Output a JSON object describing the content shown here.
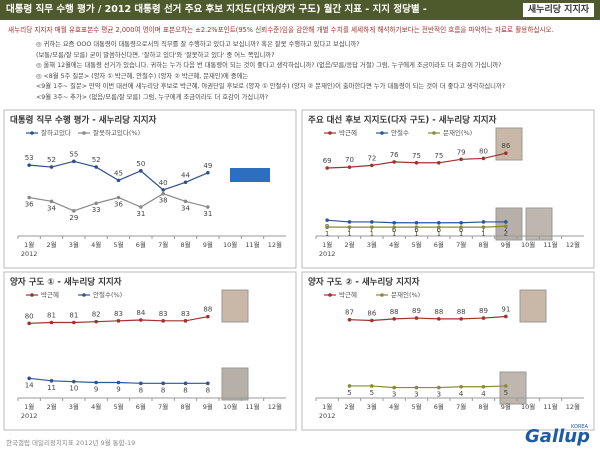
{
  "header": {
    "title": "대통령 직무 수행 평가 / 2012 대통령 선거 주요 후보 지지도(다자/양자 구도) 월간 지표 - 지지 정당별 -",
    "badge": "새누리당 지지자"
  },
  "intro": "새누리당 지지자 매월 유효표본수 평균 2,000여 명이며 표본오차는 ±2.2%포인트(95% 신뢰수준)임을 감안해 개별 수치를 세세하게 해석하기보다는 전반적인 흐름을 파악하는 자료로 활용하십시오.",
  "notes": [
    "◎ 귀하는 요즘 OOO 대통령이 대통령으로서의 직무를 잘 수행하고 있다고 보십니까? 혹은 잘못 수행하고 있다고 보십니까?",
    "(보통/모름/잘 모름) 굳이 말씀하신다면, '잘하고 있다'와 '잘못하고 있다' 중 어느 쪽입니까?",
    "◎ 올해 12월에는 대통령 선거가 있습니다. 귀하는 누가 다음 번 대통령이 되는 것이 좋다고 생각하십니까? (없음/모름/응답 거절) 그럼, 누구에게 조금이라도 더 호감이 가십니까?",
    "◎ <8월 5주 질문> (양자 ① 박근혜, 안철수) (양자 ② 박근혜, 문재인)에 중에는",
    "<9월 1주~ 질문> 만약 이번 대선에 새누리당 후보로 박근혜, 야권단일 후보로 (양자 ① 안철수) (양자 ② 문재인)이 출마한다면 누가 대통령이 되는 것이 더 좋다고 생각하십니까?",
    "<9월 3주~ 추가> (없음/모름/잘 모름) 그럼, 누구에게 조금이라도 더 호감이 가십니까?"
  ],
  "footer": "한국갤럽 데일리정치지표 2012년 9월 통합-19",
  "logo": "Gallup",
  "logo_sub": "KOREA",
  "chart_data": [
    {
      "type": "line",
      "title": "대통령 직무 수행 평가 - 새누리당 지지자",
      "year": "2012",
      "categories": [
        "1월",
        "2월",
        "3월",
        "4월",
        "5월",
        "6월",
        "7월",
        "8월",
        "9월",
        "10월",
        "11월",
        "12월"
      ],
      "ylim": [
        20,
        62
      ],
      "series": [
        {
          "name": "잘하고있다",
          "color": "#2e4f8a",
          "values": [
            53,
            52,
            55,
            52,
            45,
            50,
            40,
            44,
            49,
            null,
            null,
            null
          ]
        },
        {
          "name": "잘못하고있다(%)",
          "color": "#8a8a8a",
          "values": [
            36,
            34,
            29,
            33,
            36,
            31,
            38,
            34,
            31,
            null,
            null,
            null
          ]
        }
      ]
    },
    {
      "type": "line",
      "title": "주요 대선 후보 지지도(다자 구도) - 새누리당 지지자",
      "year": "2012",
      "categories": [
        "1월",
        "2월",
        "3월",
        "4월",
        "5월",
        "6월",
        "7월",
        "8월",
        "9월",
        "10월",
        "11월",
        "12월"
      ],
      "ylim": [
        0,
        92
      ],
      "series": [
        {
          "name": "박근혜",
          "color": "#a0322f",
          "values": [
            69,
            70,
            72,
            76,
            75,
            75,
            79,
            80,
            86,
            null,
            null,
            null
          ]
        },
        {
          "name": "안철수",
          "color": "#2f5597",
          "values": [
            9,
            7,
            7,
            6,
            6,
            6,
            6,
            7,
            7,
            null,
            null,
            null
          ]
        },
        {
          "name": "문재인(%)",
          "color": "#8a8a3a",
          "values": [
            1,
            1,
            1,
            1,
            1,
            1,
            1,
            1,
            2,
            null,
            null,
            null
          ]
        }
      ]
    },
    {
      "type": "line",
      "title": "양자 구도 ① - 새누리당 지지자",
      "year": "2012",
      "categories": [
        "1월",
        "2월",
        "3월",
        "4월",
        "5월",
        "6월",
        "7월",
        "8월",
        "9월",
        "10월",
        "11월",
        "12월"
      ],
      "ylim": [
        0,
        96
      ],
      "series": [
        {
          "name": "박근혜",
          "color": "#a0322f",
          "values": [
            80,
            81,
            81,
            82,
            83,
            84,
            83,
            83,
            88,
            null,
            null,
            null
          ]
        },
        {
          "name": "안철수(%)",
          "color": "#2f5597",
          "values": [
            14,
            11,
            10,
            9,
            9,
            8,
            8,
            8,
            8,
            null,
            null,
            null
          ]
        }
      ]
    },
    {
      "type": "line",
      "title": "양자 구도 ② - 새누리당 지지자",
      "year": "2012",
      "categories": [
        "1월",
        "2월",
        "3월",
        "4월",
        "5월",
        "6월",
        "7월",
        "8월",
        "9월",
        "10월",
        "11월",
        "12월"
      ],
      "ylim": [
        0,
        99
      ],
      "series": [
        {
          "name": "박근혜",
          "color": "#a0322f",
          "values": [
            null,
            87,
            86,
            88,
            89,
            88,
            88,
            89,
            91,
            null,
            null,
            null
          ]
        },
        {
          "name": "문재인(%)",
          "color": "#8a8a3a",
          "values": [
            null,
            5,
            5,
            3,
            3,
            3,
            4,
            4,
            5,
            null,
            null,
            null
          ]
        }
      ]
    }
  ]
}
